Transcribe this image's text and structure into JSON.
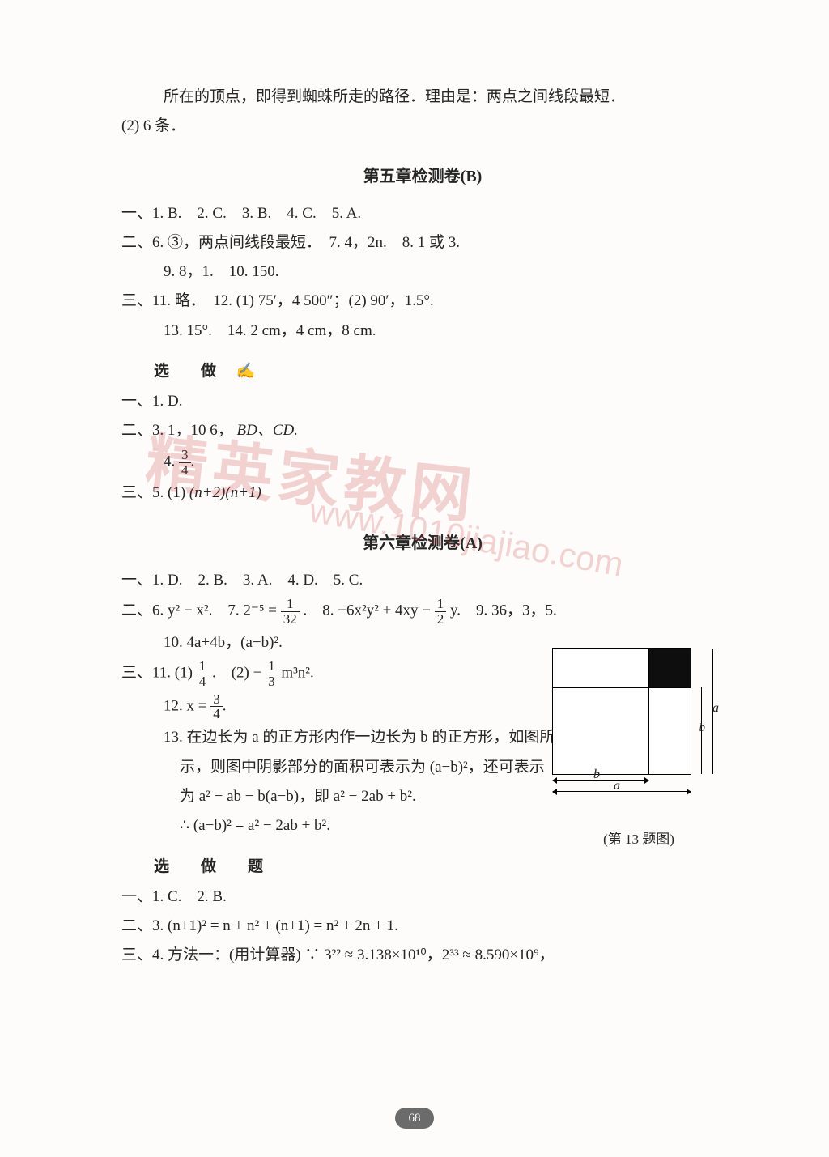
{
  "intro": {
    "line1": "所在的顶点，即得到蜘蛛所走的路径．理由是：两点之间线段最短．",
    "line2": "(2) 6 条．"
  },
  "chapter5B": {
    "title": "第五章检测卷(B)",
    "s1": "一、1. B.　2. C.　3. B.　4. C.　5. A.",
    "s2": "二、6. ③，两点间线段最短．　7. 4，2n.　8. 1 或 3.",
    "s2b": "9. 8，1.　10. 150.",
    "s3": "三、11. 略．　12. (1) 75′，4 500″；(2) 90′，1.5°.",
    "s3b": "13. 15°.　14. 2 cm，4 cm，8 cm."
  },
  "optional5": {
    "title": "选　做",
    "pen_icon": "✍",
    "l1": "一、1. D.",
    "l2_pre": "二、3. 1，10 6，",
    "l2_suf": "BD、CD.",
    "l4_prefix": "4.",
    "frac_3_4_num": "3",
    "frac_3_4_den": "4",
    "l5_pre": "三、5. (1)",
    "l5_expr": "(n+2)(n+1)"
  },
  "chapter6A": {
    "title": "第六章检测卷(A)",
    "s1": "一、1. D.　2. B.　3. A.　4. D.　5. C.",
    "s2_pre": "二、6. y² − x².　7. 2⁻⁵ =",
    "frac_1_32_num": "1",
    "frac_1_32_den": "32",
    "s2_mid": ".　8. −6x²y² + 4xy −",
    "frac_1_2_num": "1",
    "frac_1_2_den": "2",
    "s2_suf": "y.　9. 36，3，5.",
    "s2b": "10. 4a+4b，(a−b)².",
    "s3_pre": "三、11. (1)",
    "frac_1_4_num": "1",
    "frac_1_4_den": "4",
    "s3_mid": ".　(2) −",
    "frac_1_3_num": "1",
    "frac_1_3_den": "3",
    "s3_suf": "m³n².",
    "s12_pre": "12. x =",
    "frac_3_4b_num": "3",
    "frac_3_4b_den": "4",
    "s13a": "13. 在边长为 a 的正方形内作一边长为 b 的正方形，如图所",
    "s13b": "示，则图中阴影部分的面积可表示为 (a−b)²，还可表示",
    "s13c": "为 a² − ab − b(a−b)，即 a² − 2ab + b².",
    "s13d": "∴ (a−b)² = a² − 2ab + b²."
  },
  "optional6": {
    "title": "选　做　题",
    "l1": "一、1. C.　2. B.",
    "l2": "二、3. (n+1)² = n + n² + (n+1) = n² + 2n + 1.",
    "l3": "三、4. 方法一：(用计算器) ∵ 3²² ≈ 3.138×10¹⁰，2³³ ≈ 8.590×10⁹，"
  },
  "figure": {
    "caption": "(第 13 题图)",
    "label_a": "a",
    "label_b": "b"
  },
  "page_number": "68",
  "watermark": {
    "text1": "精英家教网",
    "text2": "www.1010jiajiao.com"
  },
  "colors": {
    "text": "#252525",
    "background": "#fdfcfb",
    "watermark": "rgba(205,60,60,0.22)",
    "pagenum_bg": "#6b6b6b"
  }
}
